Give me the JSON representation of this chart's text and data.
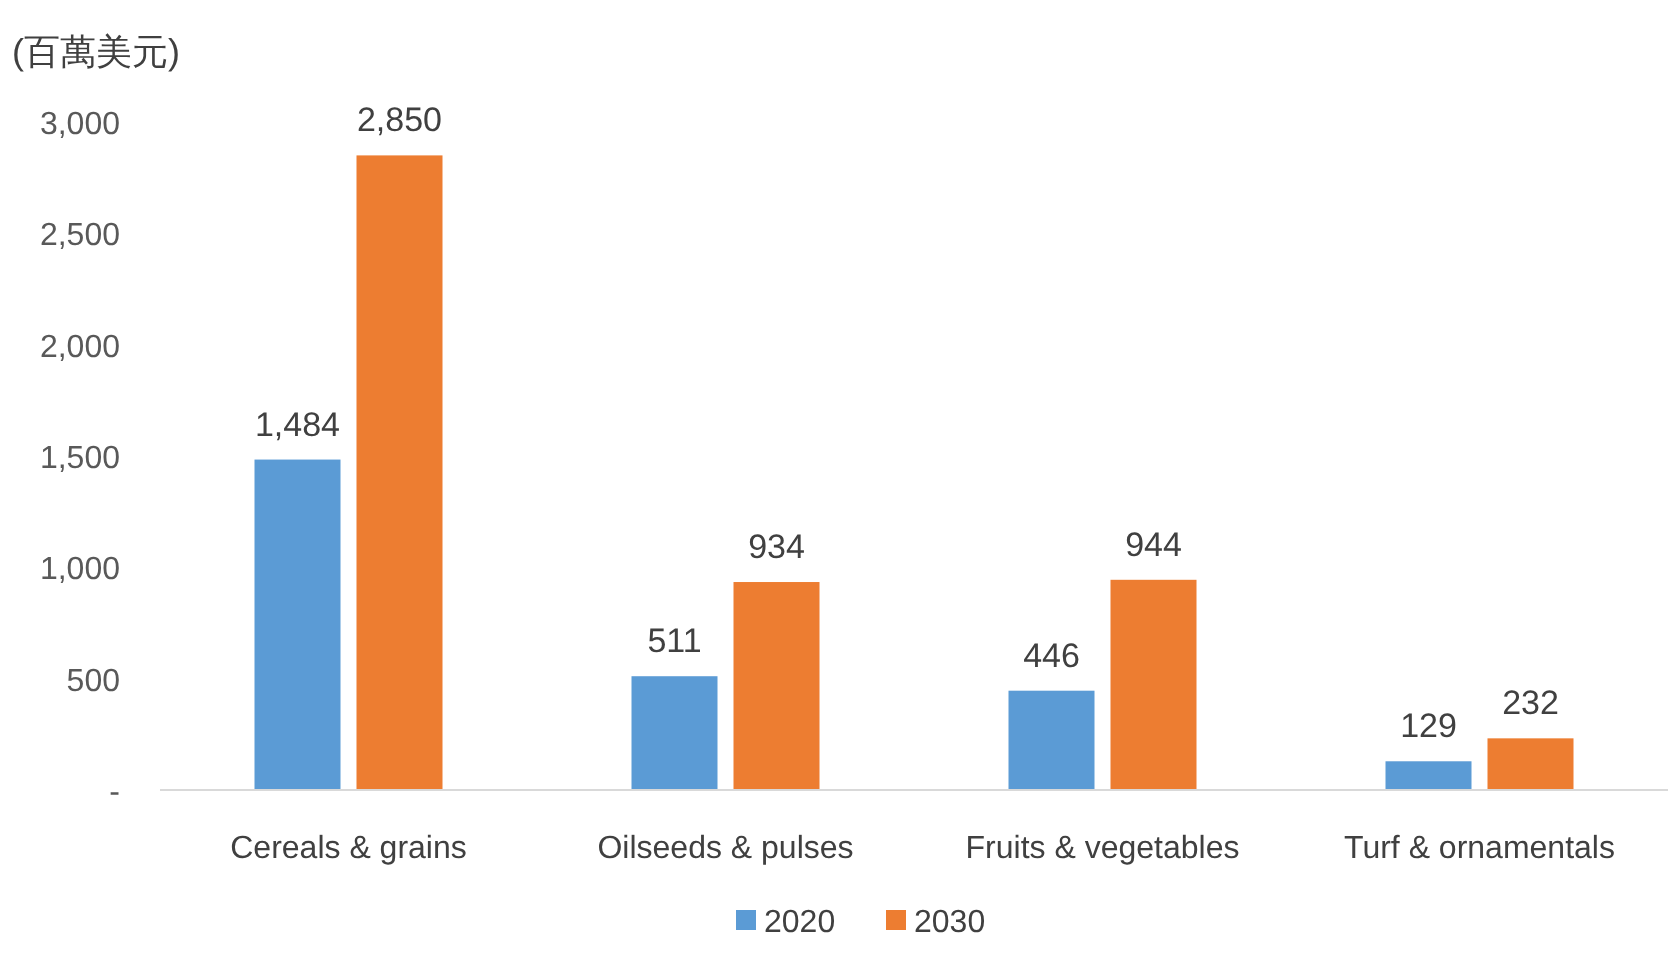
{
  "chart_data": {
    "type": "bar",
    "ylabel": "(百萬美元)",
    "categories": [
      "Cereals & grains",
      "Oilseeds & pulses",
      "Fruits & vegetables",
      "Turf & ornamentals"
    ],
    "series": [
      {
        "name": "2020",
        "color": "#5b9bd5",
        "values": [
          1484,
          511,
          446,
          129
        ],
        "value_labels": [
          "1,484",
          "511",
          "446",
          "129"
        ]
      },
      {
        "name": "2030",
        "color": "#ed7d31",
        "values": [
          2850,
          934,
          944,
          232
        ],
        "value_labels": [
          "2,850",
          "934",
          "944",
          "232"
        ]
      }
    ],
    "ylim": [
      0,
      3000
    ],
    "yticks": [
      {
        "value": 0,
        "label": "-"
      },
      {
        "value": 500,
        "label": "500"
      },
      {
        "value": 1000,
        "label": "1,000"
      },
      {
        "value": 1500,
        "label": "1,500"
      },
      {
        "value": 2000,
        "label": "2,000"
      },
      {
        "value": 2500,
        "label": "2,500"
      },
      {
        "value": 3000,
        "label": "3,000"
      }
    ],
    "legend": "bottom"
  }
}
